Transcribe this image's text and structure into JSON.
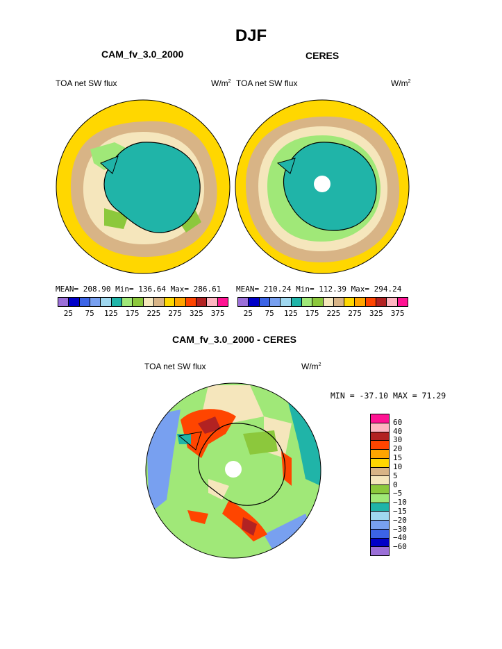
{
  "figure": {
    "title": "DJF"
  },
  "panels": [
    {
      "heading": "CAM_fv_3.0_2000",
      "variable": "TOA net SW flux",
      "units_base": "W/m",
      "units_exp": "2",
      "stats": "MEAN= 208.90   Min= 136.64   Max= 286.61"
    },
    {
      "heading": "CERES",
      "variable": "TOA net SW flux",
      "units_base": "W/m",
      "units_exp": "2",
      "stats": "MEAN= 210.24   Min= 112.39   Max= 294.24"
    }
  ],
  "diff": {
    "heading": "CAM_fv_3.0_2000 - CERES",
    "variable": "TOA net SW flux",
    "units_base": "W/m",
    "units_exp": "2",
    "minmax": "MIN = -37.10 MAX =  71.29"
  },
  "colorbar_abs": {
    "colors": [
      "#9b6fd8",
      "#0000c8",
      "#3c64e6",
      "#78a0f0",
      "#a0d8f0",
      "#20b4a8",
      "#a0e878",
      "#8cc83c",
      "#f5e6bc",
      "#d8b486",
      "#ffd700",
      "#ffa500",
      "#ff4500",
      "#b22222",
      "#ffb6c1",
      "#ff1493"
    ],
    "ticks": [
      "25",
      "75",
      "125",
      "175",
      "225",
      "275",
      "325",
      "375"
    ]
  },
  "colorbar_diff": {
    "colors": [
      "#ff1493",
      "#ffb6c1",
      "#b22222",
      "#ff4500",
      "#ffa500",
      "#ffd700",
      "#d8b486",
      "#f5e6bc",
      "#8cc83c",
      "#a0e878",
      "#20b4a8",
      "#a0d8f0",
      "#78a0f0",
      "#3c64e6",
      "#0000c8",
      "#9b6fd8"
    ],
    "ticks": [
      "60",
      "40",
      "30",
      "20",
      "15",
      "10",
      "5",
      "0",
      "−5",
      "−10",
      "−15",
      "−20",
      "−30",
      "−40",
      "−60"
    ]
  },
  "colors": {
    "ocean_yellow": "#ffd700",
    "tan": "#d8b486",
    "cream": "#f5e6bc",
    "green": "#8cc83c",
    "lightgreen": "#a0e878",
    "teal": "#20b4a8",
    "red": "#ff4500",
    "darkred": "#b22222",
    "blue": "#78a0f0",
    "coast": "#000000"
  }
}
